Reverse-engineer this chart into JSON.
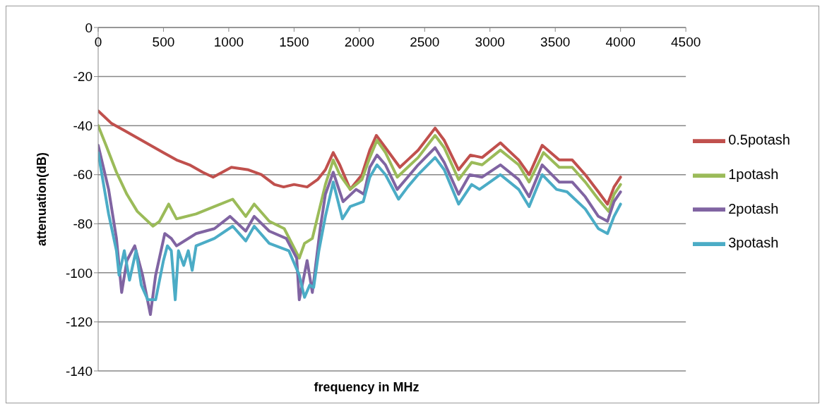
{
  "chart_data": {
    "type": "line",
    "xlabel": "frequency in MHz",
    "ylabel": "attenuation(dB)",
    "xlim": [
      0,
      4500
    ],
    "xticks": [
      0,
      500,
      1000,
      1500,
      2000,
      2500,
      3000,
      3500,
      4000,
      4500
    ],
    "ylim": [
      -140,
      0
    ],
    "yticks": [
      -140,
      -120,
      -100,
      -80,
      -60,
      -40,
      -20,
      0
    ],
    "grid": "y",
    "legend": "right",
    "series": [
      {
        "name": "0.5potash",
        "color": "#c0504d",
        "x": [
          0,
          100,
          200,
          300,
          400,
          500,
          600,
          700,
          800,
          880,
          950,
          1020,
          1150,
          1250,
          1350,
          1420,
          1500,
          1600,
          1680,
          1740,
          1800,
          1850,
          1930,
          2020,
          2080,
          2130,
          2200,
          2310,
          2370,
          2450,
          2580,
          2650,
          2760,
          2850,
          2940,
          3080,
          3220,
          3300,
          3400,
          3530,
          3630,
          3730,
          3830,
          3900,
          3950,
          4000
        ],
        "values": [
          -34,
          -39,
          -42,
          -45,
          -48,
          -51,
          -54,
          -56,
          -59,
          -61,
          -59,
          -57,
          -58,
          -60,
          -64,
          -65,
          -64,
          -65,
          -62,
          -58,
          -51,
          -56,
          -66,
          -60,
          -50,
          -44,
          -49,
          -57,
          -54,
          -50,
          -41,
          -46,
          -58,
          -52,
          -53,
          -47,
          -54,
          -60,
          -48,
          -54,
          -54,
          -60,
          -67,
          -72,
          -65,
          -61
        ]
      },
      {
        "name": "1potash",
        "color": "#9bbb59",
        "x": [
          0,
          60,
          140,
          220,
          300,
          420,
          470,
          540,
          600,
          750,
          890,
          1030,
          1130,
          1195,
          1310,
          1425,
          1540,
          1580,
          1640,
          1740,
          1800,
          1850,
          1930,
          2020,
          2080,
          2135,
          2200,
          2290,
          2370,
          2450,
          2580,
          2650,
          2760,
          2860,
          2940,
          3080,
          3220,
          3300,
          3410,
          3530,
          3630,
          3730,
          3830,
          3910,
          3950,
          4000
        ],
        "values": [
          -40,
          -48,
          -59,
          -68,
          -75,
          -81,
          -79,
          -72,
          -78,
          -76,
          -73,
          -70,
          -77,
          -72,
          -79,
          -82,
          -94,
          -88,
          -86,
          -64,
          -54,
          -60,
          -66,
          -62,
          -53,
          -46,
          -51,
          -61,
          -57,
          -53,
          -44,
          -49,
          -62,
          -55,
          -56,
          -50,
          -56,
          -63,
          -51,
          -57,
          -57,
          -63,
          -70,
          -75,
          -68,
          -64
        ]
      },
      {
        "name": "2potash",
        "color": "#8064a2",
        "x": [
          0,
          80,
          140,
          180,
          220,
          280,
          340,
          400,
          440,
          510,
          560,
          600,
          750,
          890,
          1010,
          1130,
          1195,
          1310,
          1440,
          1520,
          1540,
          1600,
          1640,
          1700,
          1740,
          1800,
          1875,
          1975,
          2035,
          2080,
          2135,
          2200,
          2290,
          2370,
          2450,
          2580,
          2650,
          2760,
          2845,
          2940,
          3080,
          3220,
          3300,
          3400,
          3530,
          3630,
          3730,
          3830,
          3900,
          3950,
          4000
        ],
        "values": [
          -48,
          -66,
          -86,
          -108,
          -95,
          -89,
          -101,
          -117,
          -101,
          -84,
          -86,
          -89,
          -84,
          -82,
          -77,
          -83,
          -77,
          -83,
          -86,
          -94,
          -111,
          -95,
          -108,
          -82,
          -68,
          -59,
          -71,
          -66,
          -68,
          -57,
          -52,
          -56,
          -66,
          -61,
          -56,
          -49,
          -55,
          -68,
          -60,
          -61,
          -56,
          -62,
          -69,
          -56,
          -63,
          -63,
          -69,
          -77,
          -79,
          -71,
          -67
        ]
      },
      {
        "name": "3potash",
        "color": "#4bacc6",
        "x": [
          0,
          80,
          140,
          160,
          200,
          240,
          290,
          330,
          380,
          440,
          500,
          530,
          560,
          590,
          615,
          655,
          690,
          720,
          750,
          890,
          1030,
          1130,
          1195,
          1310,
          1460,
          1540,
          1580,
          1620,
          1650,
          1690,
          1740,
          1800,
          1870,
          1930,
          2030,
          2080,
          2135,
          2200,
          2300,
          2370,
          2450,
          2580,
          2650,
          2760,
          2860,
          2920,
          3080,
          3220,
          3300,
          3400,
          3510,
          3590,
          3730,
          3830,
          3900,
          3950,
          4000
        ],
        "values": [
          -51,
          -76,
          -91,
          -101,
          -91,
          -103,
          -91,
          -105,
          -111,
          -111,
          -95,
          -89,
          -91,
          -111,
          -91,
          -97,
          -91,
          -99,
          -89,
          -86,
          -81,
          -87,
          -81,
          -88,
          -91,
          -101,
          -110,
          -105,
          -106,
          -91,
          -77,
          -63,
          -78,
          -73,
          -71,
          -61,
          -56,
          -60,
          -70,
          -65,
          -60,
          -53,
          -58,
          -72,
          -64,
          -66,
          -60,
          -66,
          -73,
          -60,
          -66,
          -67,
          -74,
          -82,
          -84,
          -77,
          -72
        ]
      }
    ]
  }
}
